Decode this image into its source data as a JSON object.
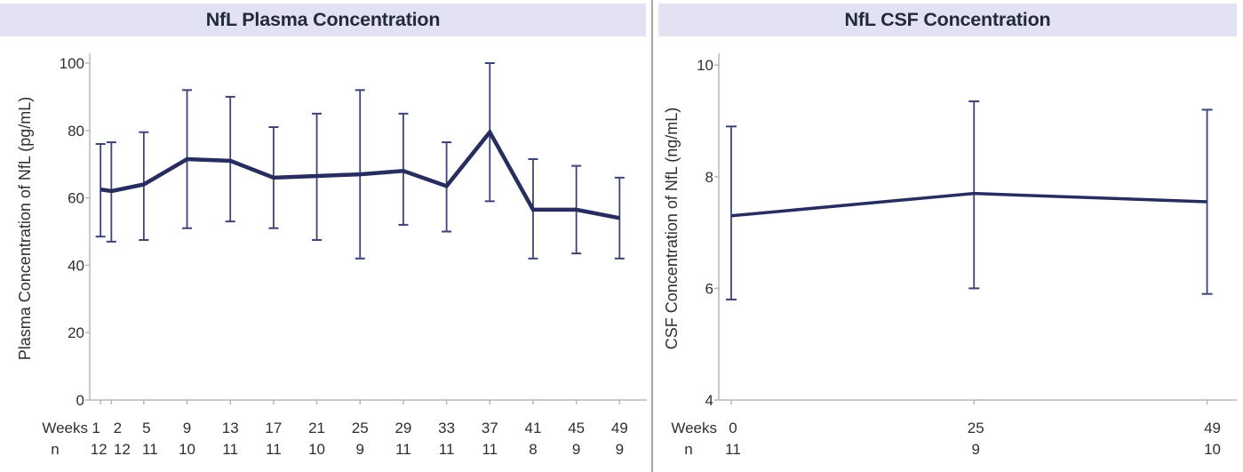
{
  "page": {
    "background": "#ffffff",
    "divider_color": "#a8a8a8",
    "title_bar_bg": "#e2e2f2",
    "title_text_color": "#232a3c",
    "line_color": "#272e5f",
    "error_bar_color": "#3c4377",
    "axis_color": "#b8b8b8",
    "label_color": "#2f2f2f"
  },
  "chart_data": [
    {
      "type": "line",
      "title": "NfL Plasma Concentration",
      "xlabel": "Weeks",
      "ylabel": "Plasma Concentration of NfL (pg/mL)",
      "x_row_label": "Weeks",
      "n_row_label": "n",
      "x": [
        1,
        2,
        5,
        9,
        13,
        17,
        21,
        25,
        29,
        33,
        37,
        41,
        45,
        49
      ],
      "n": [
        12,
        12,
        11,
        10,
        11,
        11,
        10,
        9,
        11,
        11,
        11,
        8,
        9,
        9
      ],
      "series": [
        {
          "name": "mean",
          "values": [
            62.5,
            62,
            64,
            71.5,
            71,
            66,
            66.5,
            67,
            68,
            63.5,
            79.5,
            56.5,
            56.5,
            54
          ]
        },
        {
          "name": "upper_error",
          "values": [
            76,
            76.5,
            79.5,
            92,
            90,
            81,
            85,
            92,
            85,
            76.5,
            100,
            71.5,
            69.5,
            66
          ]
        },
        {
          "name": "lower_error",
          "values": [
            48.5,
            47,
            47.5,
            51,
            53,
            51,
            47.5,
            42,
            52,
            50,
            59,
            42,
            43.5,
            42
          ]
        }
      ],
      "ylim": [
        0,
        100
      ],
      "yticks": [
        0,
        20,
        40,
        60,
        80,
        100
      ],
      "xlim": [
        0,
        51.5
      ],
      "grid": false,
      "legend": "none"
    },
    {
      "type": "line",
      "title": "NfL CSF Concentration",
      "xlabel": "Weeks",
      "ylabel": "CSF Concentration of NfL (ng/mL)",
      "x_row_label": "Weeks",
      "n_row_label": "n",
      "x": [
        0,
        25,
        49
      ],
      "n": [
        11,
        9,
        10
      ],
      "series": [
        {
          "name": "mean",
          "values": [
            7.3,
            7.7,
            7.55
          ]
        },
        {
          "name": "upper_error",
          "values": [
            8.9,
            9.35,
            9.2
          ]
        },
        {
          "name": "lower_error",
          "values": [
            5.8,
            6.0,
            5.9
          ]
        }
      ],
      "ylim": [
        4,
        10
      ],
      "yticks": [
        4,
        6,
        8,
        10
      ],
      "xlim": [
        -1.3,
        52
      ],
      "grid": false,
      "legend": "none"
    }
  ]
}
